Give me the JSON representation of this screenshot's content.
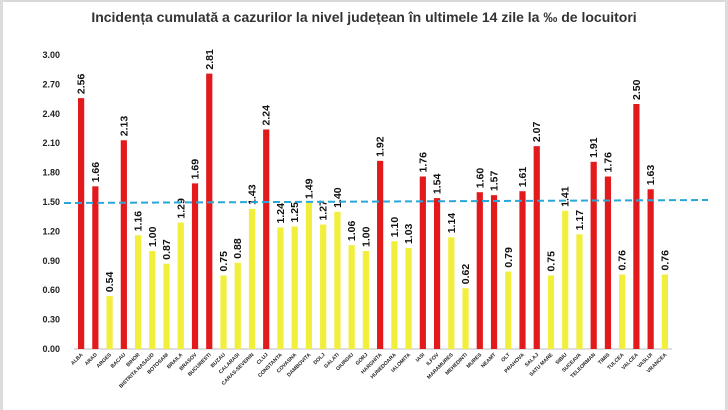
{
  "chart_data": {
    "type": "bar",
    "title": "Incidența cumulată a cazurilor la nivel județean în ultimele 14 zile la ‰ de locuitori",
    "xlabel": "",
    "ylabel": "",
    "ylim": [
      0,
      3.0
    ],
    "yticks": [
      "0.00",
      "0.30",
      "0.60",
      "0.90",
      "1.20",
      "1.50",
      "1.80",
      "2.10",
      "2.40",
      "2.70",
      "3.00"
    ],
    "grid": false,
    "reference_line": 1.5,
    "categories": [
      "ALBA",
      "ARAD",
      "ARGES",
      "BACAU",
      "BIHOR",
      "BISTRITA NASAUD",
      "BOTOSANI",
      "BRAILA",
      "BRASOV",
      "BUCURESTI",
      "BUZAU",
      "CALARASI",
      "CARAS-SEVERIN",
      "CLUJ",
      "CONSTANTA",
      "COVASNA",
      "DAMBOVITA",
      "DOLJ",
      "GALATI",
      "GIURGIU",
      "GORJ",
      "HARGHITA",
      "HUNEDOARA",
      "IALOMITA",
      "IASI",
      "ILFOV",
      "MARAMURES",
      "MEHEDINTI",
      "MURES",
      "NEAMT",
      "OLT",
      "PRAHOVA",
      "SALAJ",
      "SATU MARE",
      "SIBIU",
      "SUCEAVA",
      "TELEORMAN",
      "TIMIS",
      "TULCEA",
      "VALCEA",
      "VASLUI",
      "VRANCEA"
    ],
    "values": [
      2.56,
      1.66,
      0.54,
      2.13,
      1.16,
      1.0,
      0.87,
      1.29,
      1.69,
      2.81,
      0.75,
      0.88,
      1.43,
      2.24,
      1.24,
      1.25,
      1.49,
      1.27,
      1.4,
      1.06,
      1.0,
      1.92,
      1.1,
      1.03,
      1.76,
      1.54,
      1.14,
      0.62,
      1.6,
      1.57,
      0.79,
      1.61,
      2.07,
      0.75,
      1.41,
      1.17,
      1.91,
      1.76,
      0.76,
      2.5,
      1.63,
      0.76
    ],
    "value_labels": [
      "2.56",
      "1.66",
      "0.54",
      "2.13",
      "1.16",
      "1.00",
      "0.87",
      "1.29",
      "1.69",
      "2.81",
      "0.75",
      "0.88",
      "1.43",
      "2.24",
      "1.24",
      "1.25",
      "1.49",
      "1.27",
      "1.40",
      "1.06",
      "1.00",
      "1.92",
      "1.10",
      "1.03",
      "1.76",
      "1.54",
      "1.14",
      "0.62",
      "1.60",
      "1.57",
      "0.79",
      "1.61",
      "2.07",
      "0.75",
      "1.41",
      "1.17",
      "1.91",
      "1.76",
      "0.76",
      "2.50",
      "1.63",
      "0.76"
    ],
    "colors": {
      "high": "#e31a1c",
      "low": "#f2ee3c",
      "reference": "#2aa7d9"
    }
  }
}
